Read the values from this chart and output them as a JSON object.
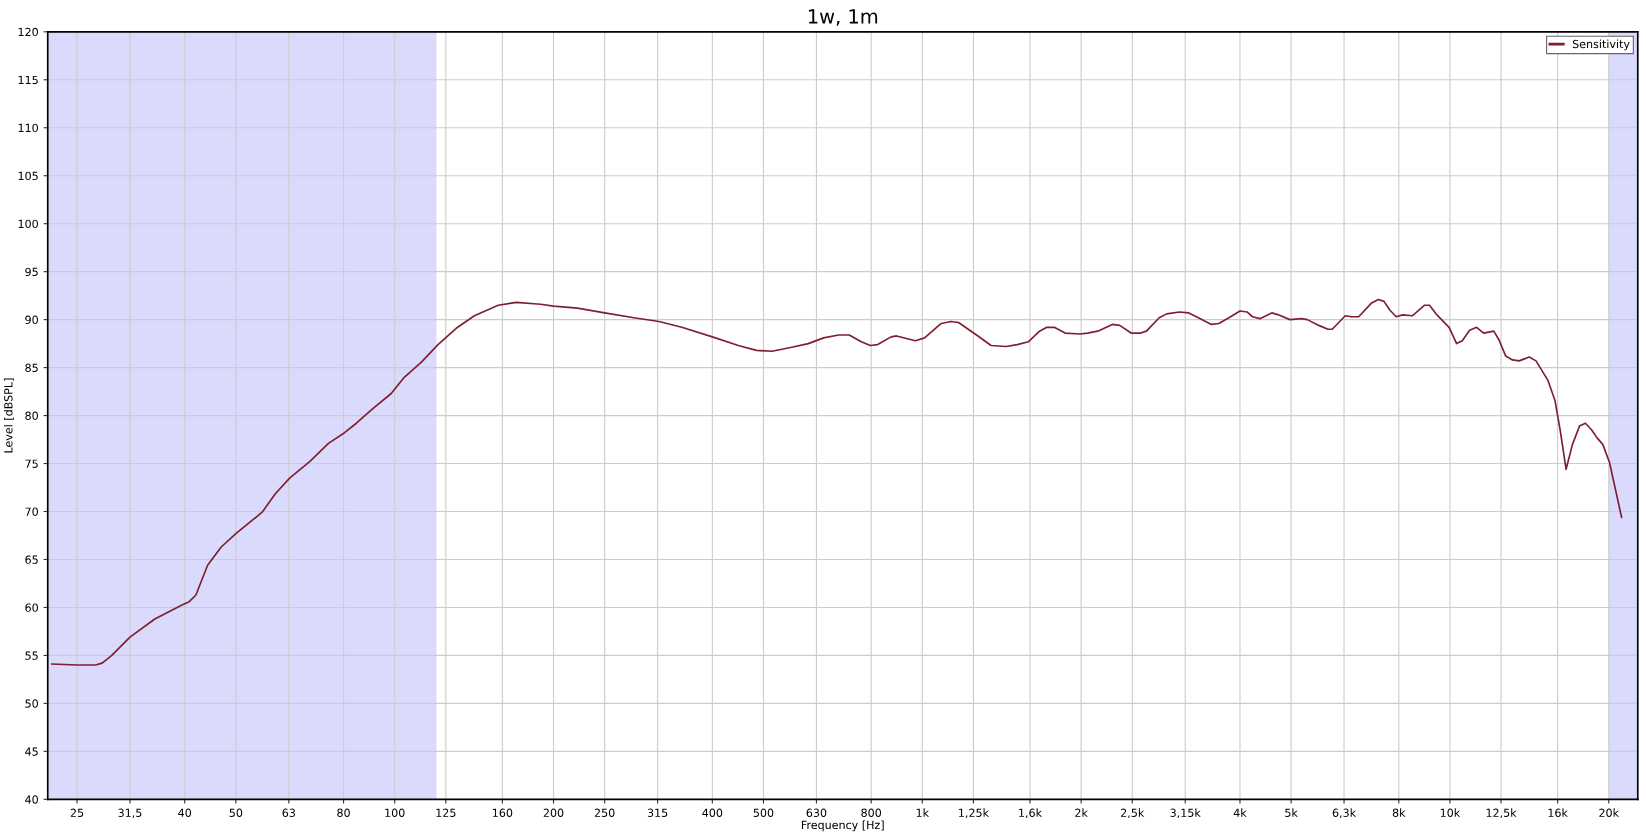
{
  "chart_data": {
    "type": "line",
    "title": "1w, 1m",
    "xlabel": "Frequency [Hz]",
    "ylabel": "Level [dBSPL]",
    "log": "x",
    "grid": true,
    "legend": "top right",
    "marker": "none",
    "line_style": "solid",
    "xlim": [
      22,
      22700
    ],
    "ylim": [
      40,
      120
    ],
    "xticks": [
      25,
      {
        "value": 31.5,
        "label": "31,5"
      },
      40,
      50,
      63,
      80,
      100,
      125,
      160,
      200,
      250,
      315,
      400,
      500,
      630,
      800,
      {
        "value": 1000,
        "label": "1k"
      },
      {
        "value": 1250,
        "label": "1,25k"
      },
      {
        "value": 1600,
        "label": "1,6k"
      },
      {
        "value": 2000,
        "label": "2k"
      },
      {
        "value": 2500,
        "label": "2,5k"
      },
      {
        "value": 3150,
        "label": "3,15k"
      },
      {
        "value": 4000,
        "label": "4k"
      },
      {
        "value": 5000,
        "label": "5k"
      },
      {
        "value": 6300,
        "label": "6,3k"
      },
      {
        "value": 8000,
        "label": "8k"
      },
      {
        "value": 10000,
        "label": "10k"
      },
      {
        "value": 12500,
        "label": "12,5k"
      },
      {
        "value": 16000,
        "label": "16k"
      },
      {
        "value": 20000,
        "label": "20k"
      }
    ],
    "yticks": [
      40,
      45,
      50,
      55,
      60,
      65,
      70,
      75,
      80,
      85,
      90,
      95,
      100,
      105,
      110,
      115,
      120
    ],
    "bands": [
      {
        "axis": "x",
        "from": 22,
        "to": 120,
        "color": "#dadafc"
      },
      {
        "axis": "x",
        "from": 20000,
        "to": 22700,
        "color": "#dadafc"
      }
    ],
    "series": [
      {
        "name": "Sensitivity",
        "color": "#7f1f2f",
        "x": [
          22.4,
          25,
          27.1,
          27.9,
          29.1,
          31.5,
          35.1,
          39.7,
          40.8,
          42.0,
          44.2,
          46.9,
          50,
          54.6,
          56.2,
          59.5,
          63.3,
          69.0,
          74.9,
          79.8,
          84.6,
          90.8,
          98.5,
          103.9,
          112.5,
          120.8,
          130.8,
          141.6,
          157.1,
          170,
          189,
          200,
          222,
          250,
          284,
          317,
          350,
          400,
          448,
          485,
          519,
          563,
          608,
          650,
          694,
          727,
          766,
          797,
          823,
          873,
          894,
          970,
          1010,
          1086,
          1134,
          1171,
          1267,
          1350,
          1441,
          1513,
          1590,
          1668,
          1722,
          1779,
          1865,
          1990,
          2057,
          2150,
          2292,
          2366,
          2488,
          2595,
          2659,
          2812,
          2906,
          3072,
          3200,
          3336,
          3531,
          3646,
          3812,
          4000,
          4125,
          4225,
          4364,
          4596,
          4729,
          4975,
          5233,
          5367,
          5640,
          5871,
          5983,
          6334,
          6509,
          6716,
          7092,
          7319,
          7500,
          7691,
          7909,
          8133,
          8485,
          8954,
          9148,
          9410,
          9963,
          10296,
          10555,
          10897,
          11233,
          11590,
          12112,
          12384,
          12758,
          13137,
          13529,
          14132,
          14560,
          15326,
          15812,
          16177,
          16602,
          17072,
          17603,
          18066,
          18566,
          18991,
          19483,
          20069,
          21152
        ],
        "values": [
          54.1,
          54.0,
          54.0,
          54.2,
          55.0,
          56.9,
          58.8,
          60.3,
          60.6,
          61.3,
          64.4,
          66.3,
          67.7,
          69.4,
          70.0,
          71.9,
          73.5,
          75.2,
          77.1,
          78.1,
          79.2,
          80.7,
          82.3,
          83.9,
          85.6,
          87.4,
          89.1,
          90.4,
          91.5,
          91.8,
          91.6,
          91.4,
          91.2,
          90.7,
          90.2,
          89.8,
          89.2,
          88.2,
          87.3,
          86.8,
          86.7,
          87.1,
          87.5,
          88.1,
          88.4,
          88.4,
          87.7,
          87.3,
          87.4,
          88.2,
          88.3,
          87.8,
          88.1,
          89.6,
          89.8,
          89.7,
          88.4,
          87.3,
          87.2,
          87.4,
          87.7,
          88.8,
          89.2,
          89.2,
          88.6,
          88.5,
          88.6,
          88.8,
          89.5,
          89.4,
          88.6,
          88.6,
          88.8,
          90.2,
          90.6,
          90.8,
          90.7,
          90.2,
          89.5,
          89.6,
          90.2,
          90.9,
          90.8,
          90.3,
          90.1,
          90.7,
          90.5,
          90.0,
          90.1,
          90.0,
          89.4,
          89.0,
          89.0,
          90.4,
          90.3,
          90.3,
          91.7,
          92.1,
          91.9,
          91.0,
          90.3,
          90.5,
          90.4,
          91.5,
          91.5,
          90.6,
          89.2,
          87.5,
          87.8,
          88.9,
          89.2,
          88.6,
          88.8,
          87.9,
          86.2,
          85.8,
          85.7,
          86.1,
          85.7,
          83.7,
          81.6,
          78.5,
          74.4,
          77.0,
          78.9,
          79.2,
          78.5,
          77.7,
          77.0,
          75.1,
          69.4
        ]
      }
    ]
  }
}
